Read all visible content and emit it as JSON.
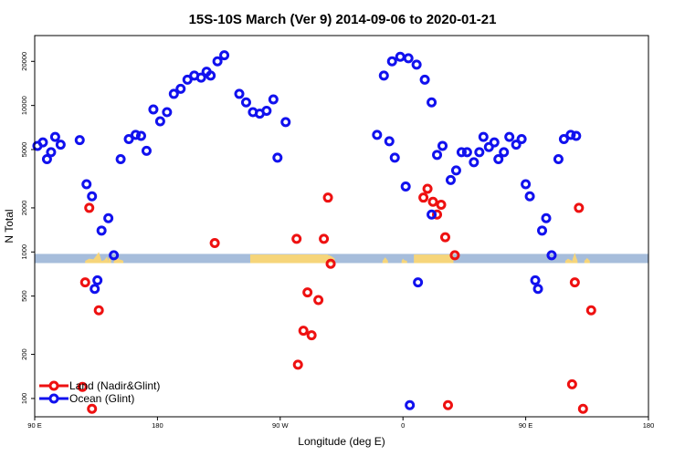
{
  "chart_data": {
    "type": "scatter",
    "title": "15S-10S March (Ver 9)   2014-09-06 to 2020-01-21",
    "xlabel": "Longitude (deg E)",
    "ylabel": "N Total",
    "y_scale": "log",
    "xlim": [
      90,
      540
    ],
    "ylim": [
      75,
      30000
    ],
    "x_ticks": [
      {
        "value": 90,
        "label": "90 E"
      },
      {
        "value": 180,
        "label": "180"
      },
      {
        "value": 270,
        "label": "90 W"
      },
      {
        "value": 360,
        "label": "0"
      },
      {
        "value": 450,
        "label": "90 E"
      },
      {
        "value": 540,
        "label": "180"
      }
    ],
    "y_ticks": [
      {
        "value": 100,
        "label": "100"
      },
      {
        "value": 200,
        "label": "200"
      },
      {
        "value": 500,
        "label": "500"
      },
      {
        "value": 1000,
        "label": "1000"
      },
      {
        "value": 2000,
        "label": "2000"
      },
      {
        "value": 5000,
        "label": "5000"
      },
      {
        "value": 10000,
        "label": "10000"
      },
      {
        "value": 20000,
        "label": "20000"
      }
    ],
    "grid": false,
    "legend_position": "bottom-left",
    "land_band": {
      "y_range": [
        840,
        970
      ],
      "color": "#a6bddb",
      "land_color": "#f6d57a",
      "land_segments": [
        {
          "x": [
            127,
            130,
            133,
            135,
            137,
            139,
            141,
            143,
            144
          ],
          "y": [
            870,
            900,
            890,
            940,
            1000,
            870,
            880,
            930,
            870
          ]
        },
        {
          "x": [
            144,
            145,
            145.5,
            146
          ],
          "y": [
            870,
            950,
            990,
            870
          ]
        },
        {
          "x": [
            148,
            150,
            152,
            154,
            155
          ],
          "y": [
            870,
            920,
            890,
            880,
            870
          ]
        },
        {
          "x": [
            248,
            252,
            260,
            270,
            280,
            290,
            297,
            305
          ],
          "y": [
            960,
            960,
            960,
            960,
            960,
            960,
            960,
            960
          ]
        },
        {
          "x": [
            283,
            300
          ],
          "y": [
            960,
            960
          ]
        },
        {
          "x": [
            302,
            306,
            308,
            310
          ],
          "y": [
            960,
            950,
            930,
            900
          ]
        },
        {
          "x": [
            359,
            360,
            361,
            363
          ],
          "y": [
            870,
            900,
            880,
            870
          ]
        },
        {
          "x": [
            345,
            347,
            349
          ],
          "y": [
            870,
            920,
            870
          ]
        },
        {
          "x": [
            368,
            372,
            380,
            390,
            397
          ],
          "y": [
            960,
            960,
            960,
            960,
            960
          ]
        },
        {
          "x": [
            479,
            481,
            483,
            484
          ],
          "y": [
            870,
            900,
            880,
            870
          ]
        },
        {
          "x": [
            484,
            485,
            486,
            487,
            488
          ],
          "y": [
            870,
            930,
            990,
            920,
            870
          ]
        },
        {
          "x": [
            493,
            495,
            497
          ],
          "y": [
            870,
            910,
            870
          ]
        }
      ]
    },
    "series": [
      {
        "name": "Land (Nadir&Glint)",
        "color": "#ee1111",
        "points": [
          [
            125,
            120
          ],
          [
            127,
            620
          ],
          [
            130,
            2000
          ],
          [
            132,
            85
          ],
          [
            137,
            400
          ],
          [
            222,
            1150
          ],
          [
            282,
            1230
          ],
          [
            283,
            170
          ],
          [
            287,
            290
          ],
          [
            290,
            530
          ],
          [
            293,
            270
          ],
          [
            298,
            470
          ],
          [
            302,
            1230
          ],
          [
            305,
            2350
          ],
          [
            307,
            830
          ],
          [
            375,
            2350
          ],
          [
            378,
            2700
          ],
          [
            382,
            2200
          ],
          [
            385,
            1800
          ],
          [
            388,
            2100
          ],
          [
            391,
            1260
          ],
          [
            393,
            90
          ],
          [
            398,
            950
          ],
          [
            484,
            125
          ],
          [
            486,
            620
          ],
          [
            489,
            2000
          ],
          [
            492,
            85
          ],
          [
            498,
            400
          ]
        ]
      },
      {
        "name": "Ocean (Glint)",
        "color": "#1111ee",
        "points": [
          [
            92,
            5300
          ],
          [
            96,
            5600
          ],
          [
            99,
            4300
          ],
          [
            102,
            4800
          ],
          [
            105,
            6100
          ],
          [
            109,
            5400
          ],
          [
            123,
            5800
          ],
          [
            128,
            2900
          ],
          [
            132,
            2400
          ],
          [
            136,
            640
          ],
          [
            134,
            560
          ],
          [
            139,
            1400
          ],
          [
            144,
            1700
          ],
          [
            148,
            950
          ],
          [
            153,
            4300
          ],
          [
            159,
            5900
          ],
          [
            164,
            6300
          ],
          [
            168,
            6200
          ],
          [
            172,
            4900
          ],
          [
            177,
            9400
          ],
          [
            182,
            7800
          ],
          [
            187,
            9000
          ],
          [
            192,
            12000
          ],
          [
            197,
            13000
          ],
          [
            202,
            15000
          ],
          [
            207,
            16000
          ],
          [
            212,
            15500
          ],
          [
            216,
            17000
          ],
          [
            219,
            16000
          ],
          [
            224,
            20000
          ],
          [
            229,
            22000
          ],
          [
            240,
            12000
          ],
          [
            245,
            10500
          ],
          [
            250,
            9000
          ],
          [
            255,
            8800
          ],
          [
            260,
            9200
          ],
          [
            265,
            11000
          ],
          [
            268,
            4400
          ],
          [
            274,
            7700
          ],
          [
            341,
            6300
          ],
          [
            346,
            16000
          ],
          [
            352,
            20000
          ],
          [
            358,
            21500
          ],
          [
            364,
            21000
          ],
          [
            370,
            19000
          ],
          [
            376,
            15000
          ],
          [
            381,
            10500
          ],
          [
            350,
            5700
          ],
          [
            354,
            4400
          ],
          [
            362,
            2800
          ],
          [
            365,
            90
          ],
          [
            371,
            620
          ],
          [
            381,
            1800
          ],
          [
            385,
            4600
          ],
          [
            389,
            5300
          ],
          [
            395,
            3100
          ],
          [
            399,
            3600
          ],
          [
            403,
            4800
          ],
          [
            407,
            4800
          ],
          [
            412,
            4100
          ],
          [
            416,
            4800
          ],
          [
            419,
            6100
          ],
          [
            423,
            5200
          ],
          [
            427,
            5600
          ],
          [
            430,
            4300
          ],
          [
            434,
            4800
          ],
          [
            438,
            6100
          ],
          [
            443,
            5400
          ],
          [
            447,
            5900
          ],
          [
            450,
            2900
          ],
          [
            453,
            2400
          ],
          [
            457,
            640
          ],
          [
            459,
            560
          ],
          [
            462,
            1400
          ],
          [
            465,
            1700
          ],
          [
            469,
            950
          ],
          [
            474,
            4300
          ],
          [
            478,
            5900
          ],
          [
            483,
            6300
          ],
          [
            487,
            6200
          ]
        ]
      }
    ]
  }
}
